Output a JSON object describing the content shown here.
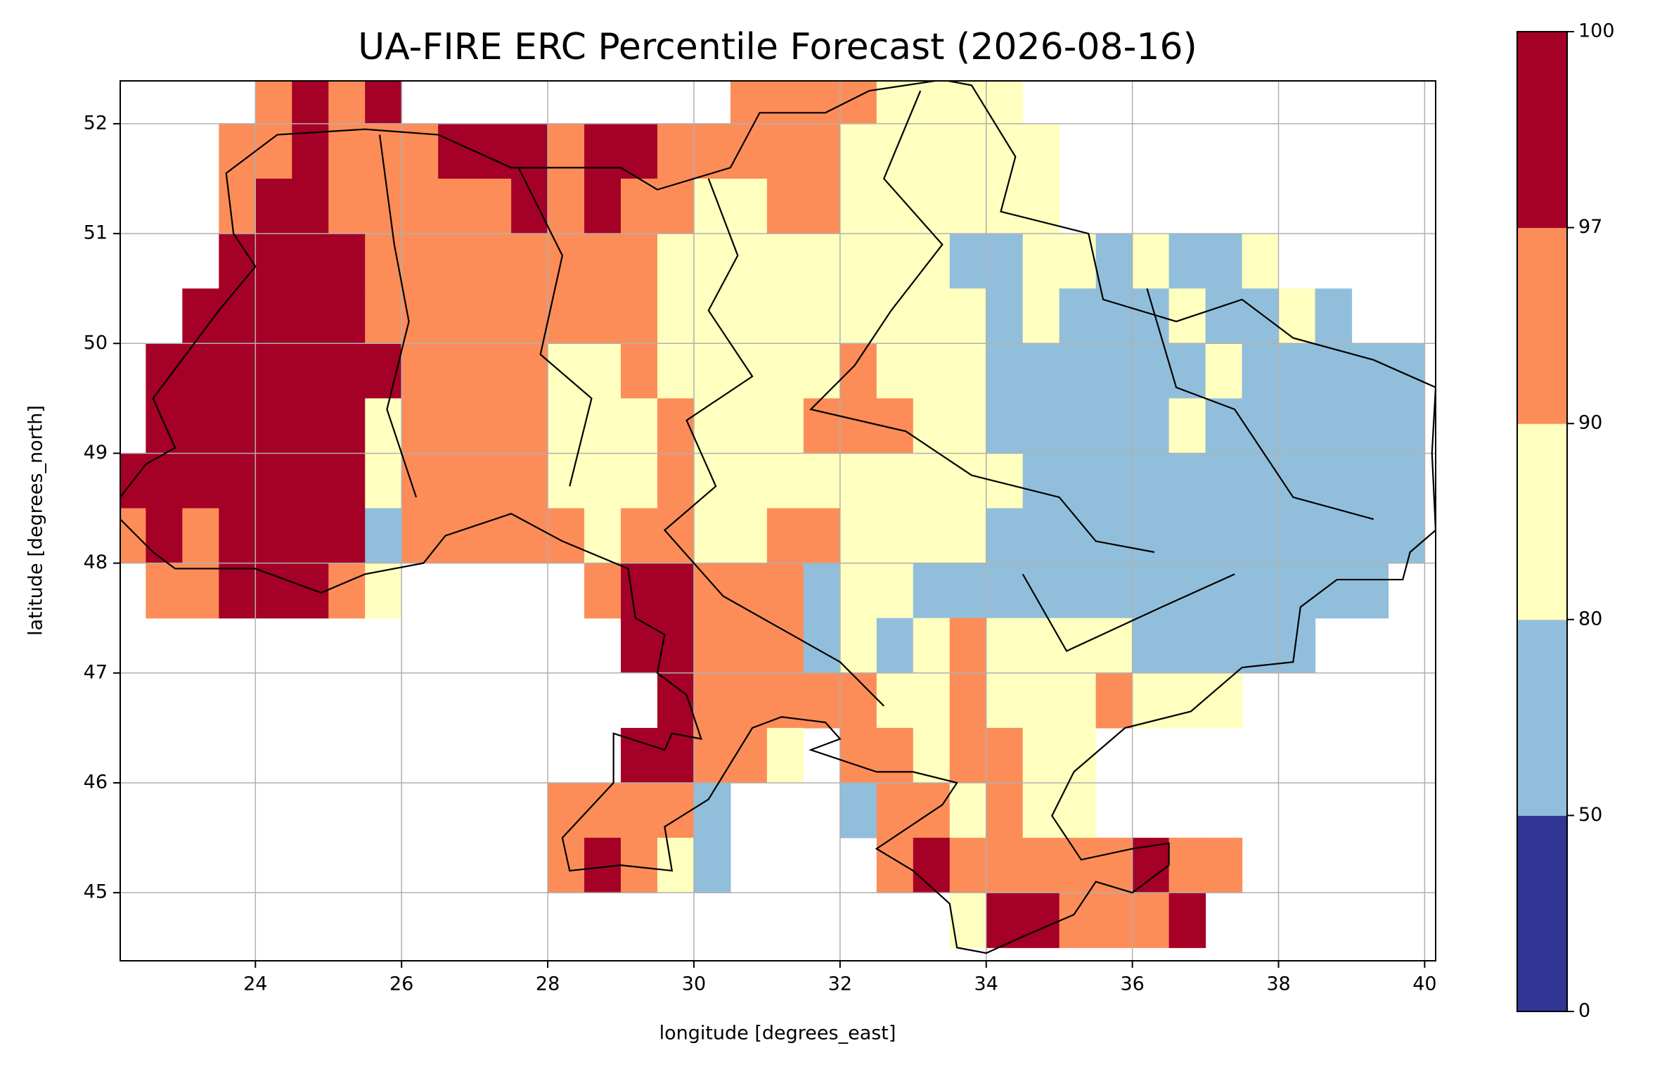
{
  "chart_data": {
    "type": "heatmap",
    "title": "UA-FIRE ERC Percentile Forecast (2026-08-16)",
    "x_label": "longitude [degrees_east]",
    "y_label": "latitude [degrees_north]",
    "xlim": [
      22.15,
      40.15
    ],
    "ylim": [
      44.38,
      52.39
    ],
    "xticks": [
      24,
      26,
      28,
      30,
      32,
      34,
      36,
      38,
      40
    ],
    "yticks": [
      45,
      46,
      47,
      48,
      49,
      50,
      51,
      52
    ],
    "grid": true,
    "lon_edges": [
      22,
      22.5,
      23,
      23.5,
      24,
      24.5,
      25,
      25.5,
      26,
      26.5,
      27,
      27.5,
      28,
      28.5,
      29,
      29.5,
      30,
      30.5,
      31,
      31.5,
      32,
      32.5,
      33,
      33.5,
      34,
      34.5,
      35,
      35.5,
      36,
      36.5,
      37,
      37.5,
      38,
      38.5,
      39,
      39.5,
      40
    ],
    "lat_edges": [
      52.5,
      52,
      51.5,
      51,
      50.5,
      50,
      49.5,
      49,
      48.5,
      48,
      47.5,
      47,
      46.5,
      46,
      45.5,
      45,
      44.5
    ],
    "values": [
      [
        null,
        null,
        null,
        null,
        94,
        98,
        94,
        98,
        null,
        null,
        null,
        null,
        null,
        null,
        null,
        null,
        null,
        94,
        94,
        94,
        94,
        85,
        85,
        85,
        85,
        null,
        null,
        null,
        null,
        null,
        null,
        null,
        null,
        null,
        null,
        null
      ],
      [
        null,
        null,
        null,
        94,
        94,
        98,
        94,
        94,
        94,
        98,
        98,
        98,
        94,
        98,
        98,
        94,
        94,
        94,
        94,
        94,
        85,
        85,
        85,
        85,
        85,
        85,
        null,
        null,
        null,
        null,
        null,
        null,
        null,
        null,
        null,
        null
      ],
      [
        null,
        null,
        null,
        94,
        98,
        98,
        94,
        94,
        94,
        94,
        94,
        98,
        94,
        98,
        94,
        94,
        85,
        85,
        94,
        94,
        85,
        85,
        85,
        85,
        85,
        85,
        null,
        null,
        null,
        null,
        null,
        null,
        null,
        null,
        null,
        null
      ],
      [
        null,
        null,
        null,
        98,
        98,
        98,
        98,
        94,
        94,
        94,
        94,
        94,
        94,
        94,
        94,
        85,
        85,
        85,
        85,
        85,
        85,
        85,
        85,
        65,
        65,
        85,
        85,
        65,
        85,
        65,
        65,
        85,
        null,
        null,
        null,
        null
      ],
      [
        null,
        null,
        98,
        98,
        98,
        98,
        98,
        94,
        94,
        94,
        94,
        94,
        94,
        94,
        94,
        85,
        85,
        85,
        85,
        85,
        85,
        85,
        85,
        85,
        65,
        85,
        65,
        65,
        65,
        85,
        65,
        65,
        85,
        65,
        null,
        null
      ],
      [
        null,
        98,
        98,
        98,
        98,
        98,
        98,
        98,
        94,
        94,
        94,
        94,
        85,
        85,
        94,
        85,
        85,
        85,
        85,
        85,
        94,
        85,
        85,
        85,
        65,
        65,
        65,
        65,
        65,
        65,
        85,
        65,
        65,
        65,
        65,
        65
      ],
      [
        null,
        98,
        98,
        98,
        98,
        98,
        98,
        85,
        94,
        94,
        94,
        94,
        85,
        85,
        85,
        94,
        85,
        85,
        85,
        94,
        94,
        94,
        85,
        85,
        65,
        65,
        65,
        65,
        65,
        85,
        65,
        65,
        65,
        65,
        65,
        65
      ],
      [
        98,
        98,
        98,
        98,
        98,
        98,
        98,
        85,
        94,
        94,
        94,
        94,
        85,
        85,
        85,
        94,
        85,
        85,
        85,
        85,
        85,
        85,
        85,
        85,
        85,
        65,
        65,
        65,
        65,
        65,
        65,
        65,
        65,
        65,
        65,
        65
      ],
      [
        94,
        98,
        94,
        98,
        98,
        98,
        98,
        65,
        94,
        94,
        94,
        94,
        94,
        85,
        94,
        94,
        85,
        85,
        94,
        94,
        85,
        85,
        85,
        85,
        65,
        65,
        65,
        65,
        65,
        65,
        65,
        65,
        65,
        65,
        65,
        65
      ],
      [
        null,
        94,
        94,
        98,
        98,
        98,
        94,
        85,
        null,
        null,
        null,
        null,
        null,
        94,
        98,
        98,
        94,
        94,
        94,
        65,
        85,
        85,
        65,
        65,
        65,
        65,
        65,
        65,
        65,
        65,
        65,
        65,
        65,
        65,
        65,
        null
      ],
      [
        null,
        null,
        null,
        null,
        null,
        null,
        null,
        null,
        null,
        null,
        null,
        null,
        null,
        null,
        98,
        98,
        94,
        94,
        94,
        65,
        85,
        65,
        85,
        94,
        85,
        85,
        85,
        85,
        65,
        65,
        65,
        65,
        65,
        null,
        null,
        null
      ],
      [
        null,
        null,
        null,
        null,
        null,
        null,
        null,
        null,
        null,
        null,
        null,
        null,
        null,
        null,
        null,
        98,
        94,
        94,
        94,
        94,
        94,
        85,
        85,
        94,
        85,
        85,
        85,
        94,
        85,
        85,
        85,
        null,
        null,
        null,
        null,
        null
      ],
      [
        null,
        null,
        null,
        null,
        null,
        null,
        null,
        null,
        null,
        null,
        null,
        null,
        null,
        null,
        98,
        98,
        94,
        94,
        85,
        null,
        94,
        94,
        85,
        94,
        94,
        85,
        85,
        null,
        null,
        null,
        null,
        null,
        null,
        null,
        null,
        null
      ],
      [
        null,
        null,
        null,
        null,
        null,
        null,
        null,
        null,
        null,
        null,
        null,
        null,
        94,
        94,
        94,
        94,
        65,
        null,
        null,
        null,
        65,
        94,
        94,
        85,
        94,
        85,
        85,
        null,
        null,
        null,
        null,
        null,
        null,
        null,
        null,
        null
      ],
      [
        null,
        null,
        null,
        null,
        null,
        null,
        null,
        null,
        null,
        null,
        null,
        null,
        94,
        98,
        94,
        85,
        65,
        null,
        null,
        null,
        null,
        94,
        98,
        94,
        94,
        94,
        94,
        94,
        98,
        94,
        94,
        null,
        null,
        null,
        null,
        null
      ],
      [
        null,
        null,
        null,
        null,
        null,
        null,
        null,
        null,
        null,
        null,
        null,
        null,
        null,
        null,
        null,
        null,
        null,
        null,
        null,
        null,
        null,
        null,
        null,
        85,
        98,
        98,
        94,
        94,
        94,
        98,
        null,
        null,
        null,
        null,
        null,
        null
      ]
    ],
    "colorbar": {
      "ticks": [
        0,
        50,
        80,
        90,
        97,
        100
      ],
      "colors": [
        "#313695",
        "#91bfdb",
        "#ffffbf",
        "#fc8d59",
        "#a50026"
      ]
    }
  }
}
